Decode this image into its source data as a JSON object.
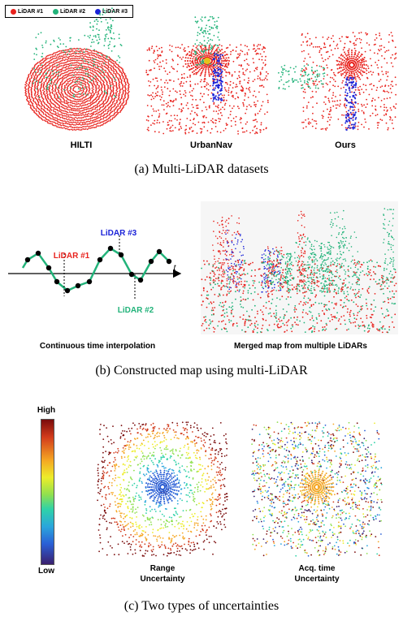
{
  "legend": {
    "items": [
      {
        "label": "LiDAR #1",
        "color": "#e8231e"
      },
      {
        "label": "LiDAR #2",
        "color": "#22b37a"
      },
      {
        "label": "LiDAR #3",
        "color": "#1a22d8"
      }
    ]
  },
  "panel_a": {
    "labels": [
      "HILTI",
      "UrbanNav",
      "Ours"
    ],
    "caption": "(a) Multi-LiDAR datasets"
  },
  "panel_b": {
    "interp": {
      "lidar1": "LiDAR #1",
      "lidar2": "LiDAR #2",
      "lidar3": "LiDAR #3",
      "axis": "t",
      "label": "Continuous time interpolation"
    },
    "map_label": "Merged map from multiple LiDARs",
    "caption": "(b) Constructed map using multi-LiDAR"
  },
  "panel_c": {
    "colorbar": {
      "high": "High",
      "low": "Low"
    },
    "range_label_1": "Range",
    "range_label_2": "Uncertainty",
    "acq_label_1": "Acq. time",
    "acq_label_2": "Uncertainty",
    "caption": "(c) Two types of uncertainties"
  }
}
